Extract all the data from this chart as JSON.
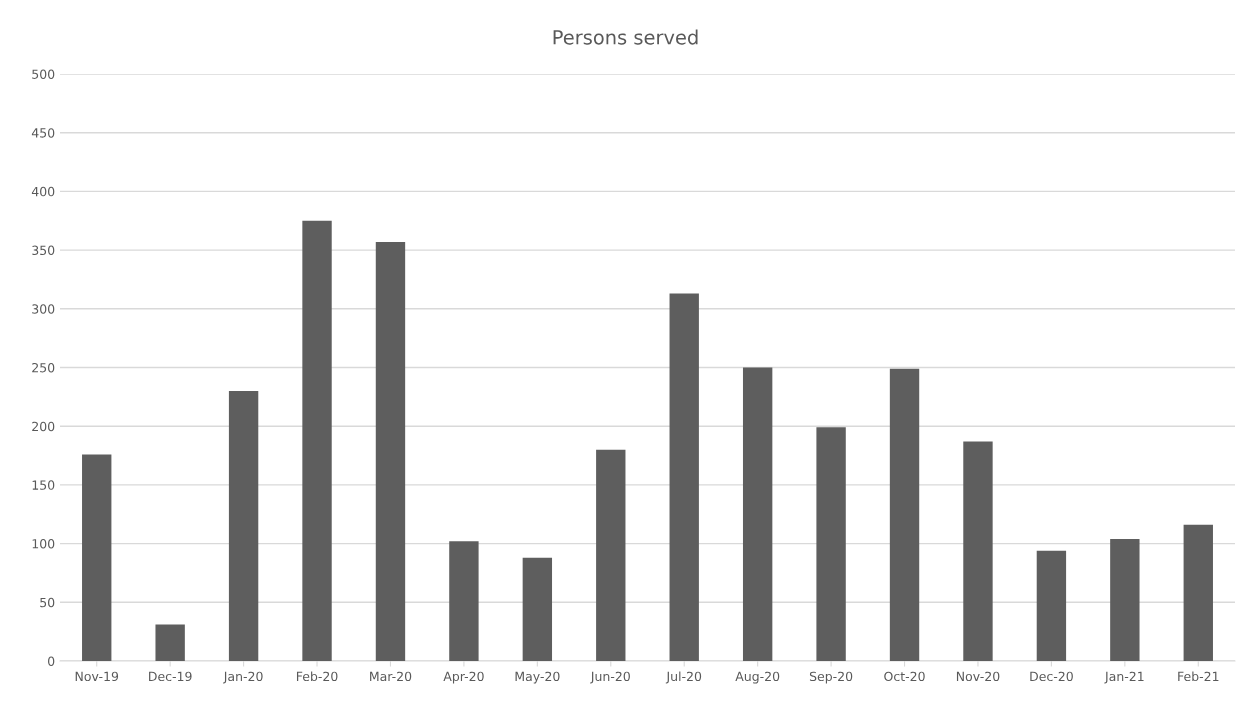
{
  "chart_data": {
    "type": "bar",
    "title": "Persons served",
    "categories": [
      "Nov-19",
      "Dec-19",
      "Jan-20",
      "Feb-20",
      "Mar-20",
      "Apr-20",
      "May-20",
      "Jun-20",
      "Jul-20",
      "Aug-20",
      "Sep-20",
      "Oct-20",
      "Nov-20",
      "Dec-20",
      "Jan-21",
      "Feb-21"
    ],
    "values": [
      176,
      31,
      230,
      375,
      357,
      102,
      88,
      180,
      313,
      250,
      199,
      249,
      187,
      94,
      104,
      116
    ],
    "color": "#5e5e5e",
    "ylim": [
      0,
      500
    ],
    "yticks": [
      0,
      50,
      100,
      150,
      200,
      250,
      300,
      350,
      400,
      450,
      500
    ],
    "grid": "y"
  }
}
